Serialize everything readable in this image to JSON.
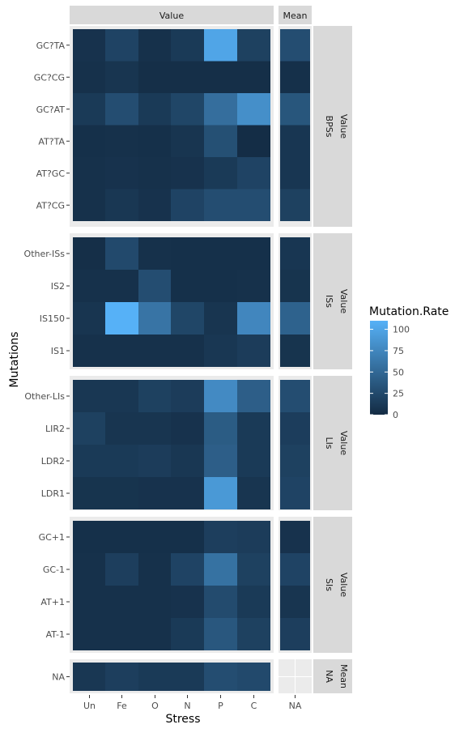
{
  "chart_data": {
    "type": "heatmap",
    "xlabel": "Stress",
    "ylabel": "Mutations",
    "column_facets": [
      "Value",
      "Mean"
    ],
    "row_facet_labels": [
      [
        "Value",
        "BPSs"
      ],
      [
        "Value",
        "ISs"
      ],
      [
        "Value",
        "LIs"
      ],
      [
        "Value",
        "SIs"
      ],
      [
        "Mean",
        "NA"
      ]
    ],
    "x_categories": {
      "Value": [
        "Un",
        "Fe",
        "O",
        "N",
        "P",
        "C"
      ],
      "Mean": [
        "NA"
      ]
    },
    "legend": {
      "title": "Mutation.Rate",
      "breaks": [
        100,
        75,
        50,
        25,
        0
      ],
      "min": 0,
      "max": 110,
      "low_color": "#132B43",
      "high_color": "#56B1F7",
      "placement": "right"
    },
    "panels": [
      {
        "rows": [
          "GC?TA",
          "GC?CG",
          "GC?AT",
          "AT?TA",
          "AT?GC",
          "AT?CG"
        ],
        "values": [
          [
            6,
            20,
            5,
            12,
            100,
            18
          ],
          [
            5,
            8,
            3,
            3,
            3,
            3
          ],
          [
            12,
            28,
            12,
            22,
            55,
            82
          ],
          [
            4,
            5,
            4,
            8,
            30,
            2
          ],
          [
            5,
            6,
            5,
            6,
            12,
            20
          ],
          [
            5,
            10,
            6,
            20,
            28,
            28
          ]
        ],
        "mean": [
          28,
          4,
          35,
          9,
          9,
          18
        ]
      },
      {
        "rows": [
          "Other-ISs",
          "IS2",
          "IS150",
          "IS1"
        ],
        "values": [
          [
            3,
            25,
            5,
            4,
            4,
            4
          ],
          [
            5,
            5,
            28,
            4,
            4,
            5
          ],
          [
            8,
            110,
            60,
            22,
            8,
            75
          ],
          [
            5,
            5,
            5,
            5,
            10,
            14
          ]
        ],
        "mean": [
          9,
          7,
          45,
          7
        ]
      },
      {
        "rows": [
          "Other-LIs",
          "LIR2",
          "LDR2",
          "LDR1"
        ],
        "values": [
          [
            10,
            10,
            18,
            14,
            78,
            42
          ],
          [
            18,
            8,
            8,
            6,
            40,
            12
          ],
          [
            12,
            12,
            14,
            10,
            42,
            12
          ],
          [
            7,
            7,
            6,
            6,
            90,
            8
          ]
        ],
        "mean": [
          28,
          15,
          18,
          20
        ]
      },
      {
        "rows": [
          "GC+1",
          "GC-1",
          "AT+1",
          "AT-1"
        ],
        "values": [
          [
            4,
            4,
            4,
            4,
            16,
            14
          ],
          [
            5,
            16,
            5,
            20,
            58,
            18
          ],
          [
            5,
            5,
            5,
            6,
            26,
            12
          ],
          [
            5,
            5,
            5,
            12,
            36,
            18
          ]
        ],
        "mean": [
          6,
          20,
          8,
          16
        ]
      },
      {
        "rows": [
          "NA"
        ],
        "values": [
          [
            10,
            16,
            12,
            12,
            28,
            25
          ]
        ],
        "mean": [
          null
        ]
      }
    ]
  }
}
